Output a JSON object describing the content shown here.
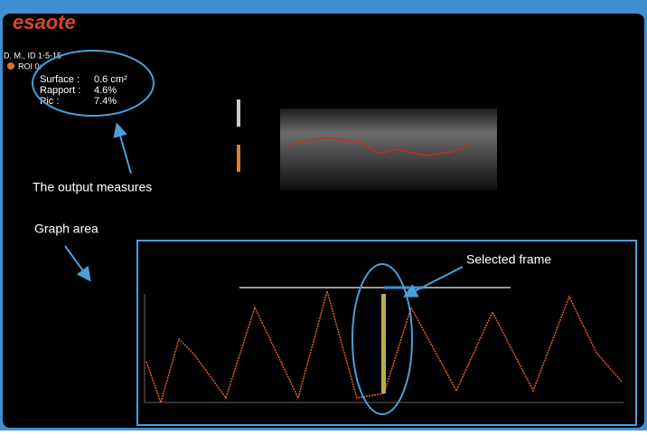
{
  "logo": "esaote",
  "patient": "D. M., ID 1-5-15",
  "roi": "ROI 0:",
  "measures": [
    {
      "label": "Surface :",
      "value": "0.6 cm²"
    },
    {
      "label": "Rapport :",
      "value": "4.6%"
    },
    {
      "label": "Pic :",
      "value": "7.4%"
    }
  ],
  "annotations": {
    "output_measures": "The output measures",
    "graph_area": "Graph area",
    "selected_frame": "Selected frame"
  }
}
